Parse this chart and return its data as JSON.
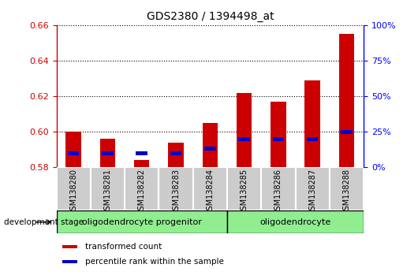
{
  "title": "GDS2380 / 1394498_at",
  "samples": [
    "GSM138280",
    "GSM138281",
    "GSM138282",
    "GSM138283",
    "GSM138284",
    "GSM138285",
    "GSM138286",
    "GSM138287",
    "GSM138288"
  ],
  "transformed_count": [
    0.6,
    0.596,
    0.584,
    0.594,
    0.605,
    0.622,
    0.617,
    0.629,
    0.655
  ],
  "percentile_rank": [
    10,
    10,
    10,
    10,
    13,
    20,
    20,
    20,
    25
  ],
  "ylim_left": [
    0.58,
    0.66
  ],
  "ylim_right": [
    0,
    100
  ],
  "yticks_left": [
    0.58,
    0.6,
    0.62,
    0.64,
    0.66
  ],
  "yticks_right": [
    0,
    25,
    50,
    75,
    100
  ],
  "groups": [
    {
      "label": "oligodendrocyte progenitor",
      "start": 0,
      "end": 5,
      "color": "#90ee90"
    },
    {
      "label": "oligodendrocyte",
      "start": 5,
      "end": 9,
      "color": "#90ee90"
    }
  ],
  "bar_color_red": "#cc0000",
  "bar_color_blue": "#0000cc",
  "bar_width": 0.45,
  "tick_label_area_color": "#cccccc",
  "stage_label": "development stage",
  "legend_items": [
    {
      "label": "transformed count",
      "color": "#cc0000"
    },
    {
      "label": "percentile rank within the sample",
      "color": "#0000cc"
    }
  ]
}
